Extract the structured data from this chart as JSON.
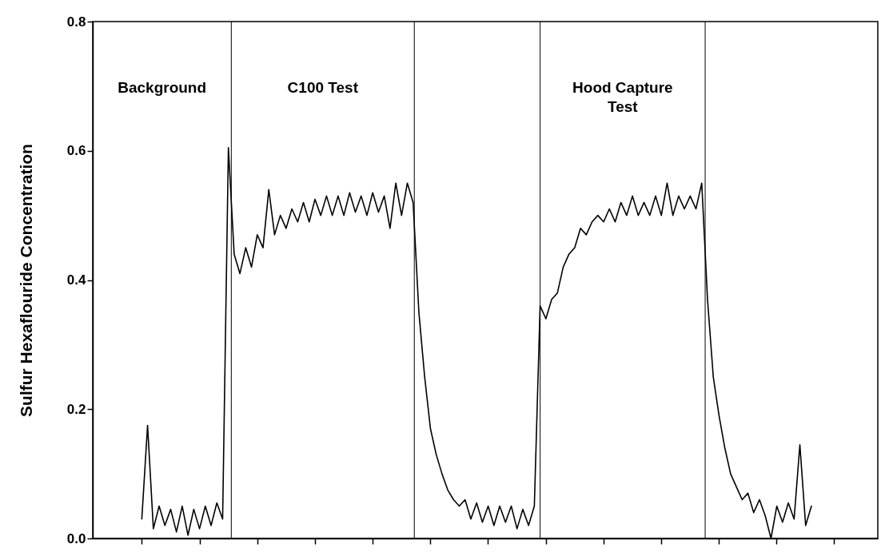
{
  "chart_data": {
    "type": "line",
    "ylabel": "Sulfur Hexaflouride Concentration",
    "tick_labels": "y",
    "categories": [
      null,
      null,
      null,
      null,
      null,
      null,
      null,
      null,
      null,
      null,
      null,
      null,
      null,
      null,
      null,
      null,
      null,
      null,
      null,
      null,
      null,
      null,
      null,
      null,
      null,
      null,
      null,
      null,
      null,
      null,
      null,
      null,
      null,
      null,
      null,
      null,
      null,
      null,
      null,
      null,
      null,
      null,
      null,
      null,
      null,
      null,
      null,
      null,
      null,
      null,
      null,
      null,
      null,
      null,
      null,
      null,
      null,
      null,
      null,
      null,
      null,
      null,
      null,
      null,
      null,
      null,
      null,
      null,
      null,
      null,
      null,
      null,
      null,
      null,
      null,
      null,
      null,
      null,
      null,
      null,
      null,
      null,
      null,
      null,
      null,
      null,
      null,
      null,
      null,
      null,
      null,
      null,
      null,
      null,
      null,
      null,
      null,
      null,
      null,
      null,
      null,
      null,
      null,
      null,
      null,
      null,
      null,
      null,
      null,
      null,
      null,
      null,
      null,
      null,
      null,
      null,
      null,
      null,
      null,
      null,
      null,
      null,
      null,
      null,
      null,
      null,
      null,
      null,
      null,
      null,
      null,
      null,
      null,
      null,
      null,
      null
    ],
    "ylim": [
      0,
      0.8
    ],
    "yticks": [
      {
        "value": 0,
        "label": "0.0"
      },
      {
        "value": 0.2,
        "label": "0.2"
      },
      {
        "value": 0.4,
        "label": "0.4"
      },
      {
        "value": 0.6,
        "label": "0.6"
      },
      {
        "value": 0.8,
        "label": "0.8"
      }
    ],
    "series": [
      {
        "color": "#000000",
        "values": [
          null,
          null,
          null,
          null,
          null,
          null,
          null,
          null,
          0.03,
          0.175,
          0.015,
          0.05,
          0.02,
          0.045,
          0.01,
          0.05,
          0.005,
          0.045,
          0.015,
          0.05,
          0.02,
          0.055,
          0.03,
          0.605,
          0.44,
          0.41,
          0.45,
          0.42,
          0.47,
          0.45,
          0.54,
          0.47,
          0.5,
          0.48,
          0.51,
          0.49,
          0.52,
          0.49,
          0.525,
          0.5,
          0.53,
          0.5,
          0.53,
          0.5,
          0.535,
          0.505,
          0.53,
          0.5,
          0.535,
          0.505,
          0.53,
          0.48,
          0.55,
          0.5,
          0.55,
          0.52,
          0.35,
          0.25,
          0.17,
          0.13,
          0.1,
          0.075,
          0.06,
          0.05,
          0.06,
          0.03,
          0.055,
          0.025,
          0.05,
          0.02,
          0.05,
          0.025,
          0.05,
          0.015,
          0.045,
          0.02,
          0.05,
          0.36,
          0.34,
          0.37,
          0.38,
          0.42,
          0.44,
          0.45,
          0.48,
          0.47,
          0.49,
          0.5,
          0.49,
          0.51,
          0.49,
          0.52,
          0.5,
          0.53,
          0.5,
          0.52,
          0.5,
          0.53,
          0.5,
          0.55,
          0.5,
          0.53,
          0.51,
          0.53,
          0.51,
          0.55,
          0.37,
          0.25,
          0.19,
          0.14,
          0.1,
          0.08,
          0.06,
          0.07,
          0.04,
          0.06,
          0.035,
          0.0,
          0.05,
          0.025,
          0.055,
          0.03,
          0.145,
          0.02,
          0.05,
          null,
          null,
          null,
          null,
          null,
          null,
          null,
          null,
          null,
          null,
          null
        ]
      }
    ],
    "annotations": [
      "Background",
      "C100 Test",
      "Hood Capture\nTest"
    ]
  }
}
